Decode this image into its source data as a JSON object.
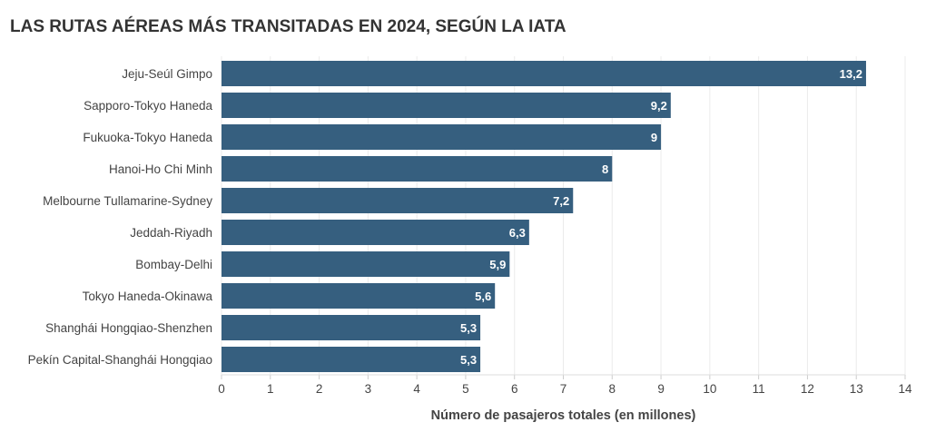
{
  "chart_data": {
    "type": "bar",
    "orientation": "horizontal",
    "title": "LAS RUTAS AÉREAS MÁS TRANSITADAS EN 2024, SEGÚN LA IATA",
    "xlabel": "Número de pasajeros totales (en millones)",
    "ylabel": "",
    "xlim": [
      0,
      14
    ],
    "grid": true,
    "ticks": [
      "0",
      "1",
      "2",
      "3",
      "4",
      "5",
      "6",
      "7",
      "8",
      "9",
      "10",
      "11",
      "12",
      "13",
      "14"
    ],
    "categories": [
      "Jeju-Seúl Gimpo",
      "Sapporo-Tokyo Haneda",
      "Fukuoka-Tokyo Haneda",
      "Hanoi-Ho Chi Minh",
      "Melbourne Tullamarine-Sydney",
      "Jeddah-Riyadh",
      "Bombay-Delhi",
      "Tokyo Haneda-Okinawa",
      "Shanghái Hongqiao-Shenzhen",
      "Pekín Capital-Shanghái Hongqiao"
    ],
    "values": [
      13.2,
      9.2,
      9,
      8,
      7.2,
      6.3,
      5.9,
      5.6,
      5.3,
      5.3
    ],
    "value_labels": [
      "13,2",
      "9,2",
      "9",
      "8",
      "7,2",
      "6,3",
      "5,9",
      "5,6",
      "5,3",
      "5,3"
    ],
    "bar_color": "#365f7f"
  }
}
